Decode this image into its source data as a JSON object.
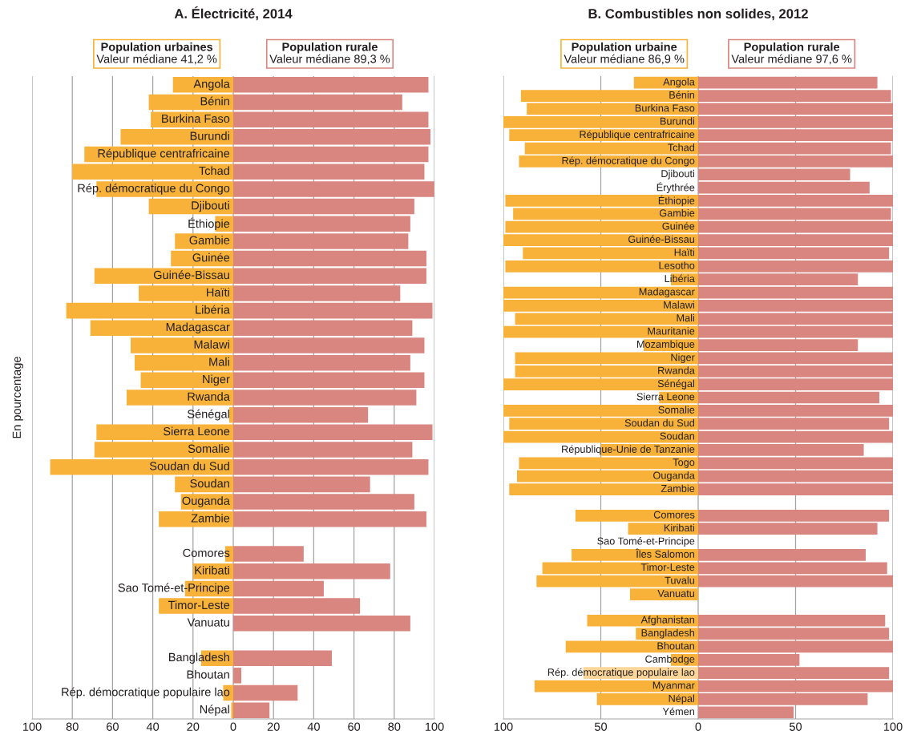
{
  "chart_data": [
    {
      "type": "bar",
      "orientation": "horizontal",
      "stacked": true,
      "title": "A. Électricité, 2014",
      "ylabel": "En pourcentage",
      "categories": [
        "Angola",
        "Bénin",
        "Burkina Faso",
        "Burundi",
        "République centrafricaine",
        "Tchad",
        "Rép. démocratique du Congo",
        "Djibouti",
        "Éthiopie",
        "Gambie",
        "Guinée",
        "Guinée-Bissau",
        "Haïti",
        "Libéria",
        "Madagascar",
        "Malawi",
        "Mali",
        "Niger",
        "Rwanda",
        "Sénégal",
        "Sierra Leone",
        "Somalie",
        "Soudan du Sud",
        "Soudan",
        "Ouganda",
        "Zambie",
        null,
        "Comores",
        "Kiribati",
        "Sao Tomé-et-Principe",
        "Timor-Leste",
        "Vanuatu",
        null,
        "Bangladesh",
        "Bhoutan",
        "Rép. démocratique populaire lao",
        "Népal"
      ],
      "series": [
        {
          "name": "Population urbaines",
          "color": "#f8b23a",
          "values": [
            -30,
            -42,
            -41,
            -56,
            -74,
            -80,
            -68,
            -42,
            -9,
            -29,
            -31,
            -69,
            -47,
            -83,
            -71,
            -51,
            -49,
            -46,
            -53,
            -2,
            -68,
            -69,
            -91,
            -29,
            -26,
            -37,
            null,
            -4,
            -20,
            -24,
            -37,
            null,
            null,
            -16,
            null,
            -5,
            -1
          ]
        },
        {
          "name": "Population rurale",
          "color": "#d98680",
          "values": [
            97,
            84,
            97,
            98,
            97,
            95,
            100,
            90,
            88,
            87,
            96,
            96,
            83,
            99,
            89,
            95,
            88,
            95,
            91,
            67,
            99,
            89,
            97,
            68,
            90,
            96,
            null,
            35,
            78,
            45,
            63,
            88,
            null,
            49,
            4,
            32,
            18
          ]
        }
      ],
      "annotations": [
        "Valeur médiane 41,2 %",
        "Valeur médiane 89,3 %"
      ],
      "xlim": [
        -100,
        100
      ],
      "xticks": [
        {
          "value": -100,
          "label": "100"
        },
        {
          "value": -80,
          "label": "80"
        },
        {
          "value": -60,
          "label": "60"
        },
        {
          "value": -40,
          "label": "40"
        },
        {
          "value": -20,
          "label": "20"
        },
        0,
        20,
        40,
        60,
        80,
        100
      ],
      "grid": "x",
      "legend": "top"
    },
    {
      "type": "bar",
      "orientation": "horizontal",
      "stacked": true,
      "title": "B. Combustibles non solides, 2012",
      "categories": [
        "Angola",
        "Bénin",
        "Burkina Faso",
        "Burundi",
        "République centrafricaine",
        "Tchad",
        "Rép. démocratique du Congo",
        "Djibouti",
        "Érythrée",
        "Éthiopie",
        "Gambie",
        "Guinée",
        "Guinée-Bissau",
        "Haïti",
        "Lesotho",
        "Libéria",
        "Madagascar",
        "Malawi",
        "Mali",
        "Mauritanie",
        "Mozambique",
        "Niger",
        "Rwanda",
        "Sénégal",
        "Sierra Leone",
        "Somalie",
        "Soudan du Sud",
        "Soudan",
        "République-Unie de Tanzanie",
        "Togo",
        "Ouganda",
        "Zambie",
        null,
        "Comores",
        "Kiribati",
        "Sao Tomé-et-Principe",
        "Îles Salomon",
        "Timor-Leste",
        "Tuvalu",
        "Vanuatu",
        null,
        "Afghanistan",
        "Bangladesh",
        "Bhoutan",
        "Cambodge",
        "Rép. démocratique populaire lao",
        "Myanmar",
        "Népal",
        "Yémen"
      ],
      "series": [
        {
          "name": "Population urbaine",
          "color": "#f8b23a",
          "values": [
            -33,
            -91,
            -88,
            -100,
            -97,
            -89,
            -92,
            null,
            null,
            -99,
            -95,
            -99,
            -100,
            -90,
            -99,
            -14,
            -100,
            -100,
            -94,
            -100,
            -28,
            -94,
            -94,
            -100,
            -20,
            -100,
            -97,
            -100,
            -50,
            -92,
            -93,
            -97,
            null,
            -63,
            -36,
            null,
            -65,
            -80,
            -83,
            -35,
            null,
            -57,
            -32,
            -68,
            -14,
            -59,
            -84,
            -52,
            null
          ],
          "colors": [
            "#f8b23a",
            "#f8b23a",
            "#f8b23a",
            "#f8b23a",
            "#f8b23a",
            "#f8b23a",
            "#f8b23a",
            "#f8b23a",
            "#f8b23a",
            "#f8b23a",
            "#f8b23a",
            "#f8b23a",
            "#f8b23a",
            "#f8b23a",
            "#f8b23a",
            "#f8b23a",
            "#f8b23a",
            "#f8b23a",
            "#f8b23a",
            "#f8b23a",
            "#f8b23a",
            "#f8b23a",
            "#f8b23a",
            "#f8b23a",
            "#f8b23a",
            "#f8b23a",
            "#f8b23a",
            "#f8b23a",
            "#f8b23a",
            "#f8b23a",
            "#f8b23a",
            "#f8b23a",
            "#f8b23a",
            "#f8b23a",
            "#f8b23a",
            "#f8b23a",
            "#f8b23a",
            "#f8b23a",
            "#f8b23a",
            "#f8b23a",
            "#f8b23a",
            "#f8b23a",
            "#f8b23a",
            "#f8b23a",
            "#f8b23a",
            "#fcd599",
            "#f8b23a",
            "#f8b23a",
            "#f8b23a"
          ]
        },
        {
          "name": "Population rurale",
          "color": "#d98680",
          "values": [
            92,
            99,
            100,
            100,
            100,
            99,
            100,
            78,
            88,
            100,
            99,
            100,
            100,
            98,
            100,
            82,
            100,
            100,
            100,
            100,
            82,
            100,
            100,
            100,
            93,
            100,
            98,
            100,
            85,
            100,
            100,
            100,
            null,
            98,
            92,
            null,
            86,
            97,
            100,
            null,
            null,
            96,
            98,
            100,
            52,
            98,
            100,
            87,
            49
          ]
        }
      ],
      "annotations": [
        "Valeur médiane 86,9 %",
        "Valeur médiane 97,6 %"
      ],
      "xlim": [
        -100,
        100
      ],
      "xticks": [
        {
          "value": -100,
          "label": "100"
        },
        {
          "value": -50,
          "label": "50"
        },
        0,
        50,
        100
      ],
      "grid": "x",
      "legend": "top"
    }
  ]
}
